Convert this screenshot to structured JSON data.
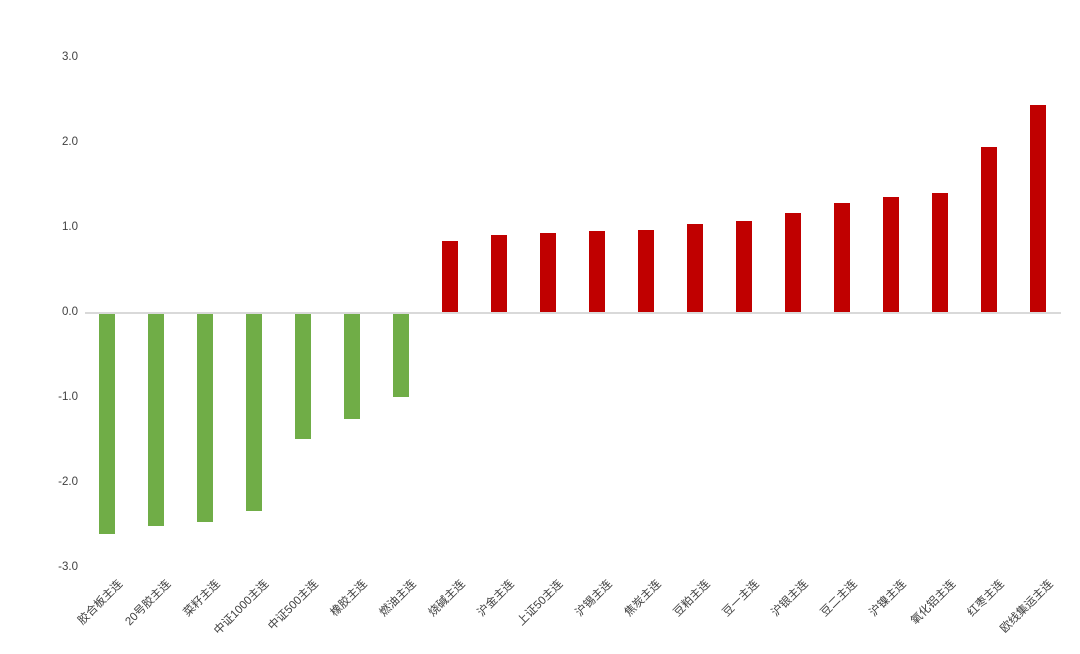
{
  "chart_data": {
    "type": "bar",
    "title": "",
    "xlabel": "",
    "ylabel": "",
    "categories": [
      "胶合板主连",
      "20号胶主连",
      "菜籽主连",
      "中证1000主连",
      "中证500主连",
      "橡胶主连",
      "燃油主连",
      "烧碱主连",
      "沪金主连",
      "上证50主连",
      "沪锡主连",
      "焦炭主连",
      "豆粕主连",
      "豆一主连",
      "沪银主连",
      "豆二主连",
      "沪镍主连",
      "氧化铝主连",
      "红枣主连",
      "欧线集运主连"
    ],
    "values": [
      -2.59,
      -2.49,
      -2.45,
      -2.32,
      -1.47,
      -1.23,
      -0.98,
      0.84,
      0.91,
      0.93,
      0.95,
      0.96,
      1.04,
      1.07,
      1.17,
      1.28,
      1.35,
      1.4,
      1.94,
      2.44
    ],
    "ylim": [
      -3.0,
      3.0
    ],
    "ytick_labels": [
      "3.0",
      "2.0",
      "1.0",
      "0.0",
      "-1.0",
      "-2.0",
      "-3.0"
    ],
    "ytick_values": [
      3,
      2,
      1,
      0,
      -1,
      -2,
      -3
    ],
    "grid": false,
    "legend": false,
    "colors": {
      "positive_bar": "#c00000",
      "negative_bar": "#70ad47",
      "axis_line": "#d9d9d9",
      "tick_text": "#404040",
      "background": "#ffffff"
    }
  }
}
